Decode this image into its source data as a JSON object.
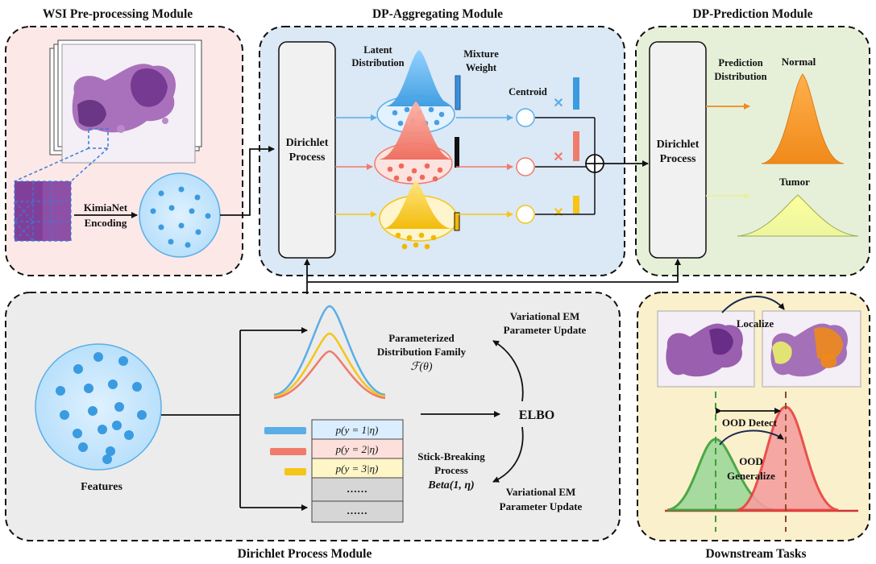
{
  "modules": {
    "wsi": "WSI Pre-processing Module",
    "agg": "DP-Aggregating Module",
    "pred": "DP-Prediction Module",
    "dp": "Dirichlet Process Module",
    "down": "Downstream Tasks"
  },
  "wsi": {
    "encoding_l1": "KimiaNet",
    "encoding_l2": "Encoding"
  },
  "agg": {
    "dirichlet_l1": "Dirichlet",
    "dirichlet_l2": "Process",
    "latent_l1": "Latent",
    "latent_l2": "Distribution",
    "mixture_l1": "Mixture",
    "mixture_l2": "Weight",
    "centroid": "Centroid"
  },
  "pred": {
    "dirichlet_l1": "Dirichlet",
    "dirichlet_l2": "Process",
    "pd_l1": "Prediction",
    "pd_l2": "Distribution",
    "normal": "Normal",
    "tumor": "Tumor"
  },
  "dp": {
    "features": "Features",
    "vem_top_l1": "Variational EM",
    "vem_top_l2": "Parameter Update",
    "pdf_l1": "Parameterized",
    "pdf_l2": "Distribution Family",
    "pdf_l3": "ℱ(θ)",
    "elbo": "ELBO",
    "sb_l1": "Stick-Breaking",
    "sb_l2": "Process",
    "sb_l3": "Beta(1, η)",
    "vem_bot_l1": "Variational EM",
    "vem_bot_l2": "Parameter Update",
    "rows": [
      "p(y = 1|η)",
      "p(y = 2|η)",
      "p(y = 3|η)",
      "……",
      "……"
    ]
  },
  "down": {
    "localize": "Localize",
    "ood_detect": "OOD Detect",
    "ood_gen_l1": "OOD",
    "ood_gen_l2": "Generalize"
  },
  "colors": {
    "blue": "#5aaee8",
    "red": "#f07b6b",
    "yellow": "#f5c518",
    "pink_bg": "#fde8e8",
    "blue_bg": "#dbe8f5",
    "green_bg": "#e6f0d9",
    "gray_bg": "#ececec",
    "tan_bg": "#fbf0cc"
  }
}
